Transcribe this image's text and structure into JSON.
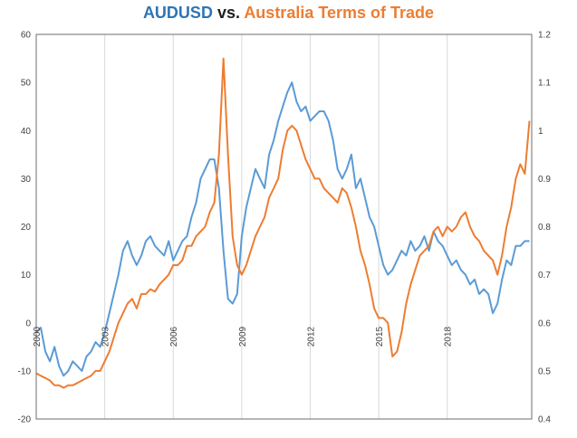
{
  "chart_data": {
    "type": "line",
    "title": {
      "part1": "AUDUSD",
      "part2": " vs. ",
      "part3": "Australia Terms of Trade"
    },
    "xlabel": "",
    "x_ticks": [
      "2000",
      "2003",
      "2006",
      "2009",
      "2012",
      "2015",
      "2018"
    ],
    "x_range": [
      2000.0,
      2021.7
    ],
    "y_left": {
      "range": [
        -20,
        60
      ],
      "ticks": [
        -20,
        -10,
        0,
        10,
        20,
        30,
        40,
        50,
        60
      ]
    },
    "y_right": {
      "range": [
        0.4,
        1.2
      ],
      "ticks": [
        "0.4",
        "0.5",
        "0.6",
        "0.7",
        "0.8",
        "0.9",
        "1",
        "1.1",
        "1.2"
      ]
    },
    "grid": "vertical",
    "legend": "none",
    "colors": {
      "audusd": "#5b9bd5",
      "tot": "#ed7d31",
      "title_part1": "#2e75b6",
      "title_part2": "#1f1f1f",
      "title_part3": "#ed7d31"
    },
    "series": [
      {
        "name": "AUDUSD",
        "axis": "left",
        "x": [
          2000.0,
          2000.2,
          2000.4,
          2000.6,
          2000.8,
          2001.0,
          2001.2,
          2001.4,
          2001.6,
          2001.8,
          2002.0,
          2002.2,
          2002.4,
          2002.6,
          2002.8,
          2003.0,
          2003.2,
          2003.4,
          2003.6,
          2003.8,
          2004.0,
          2004.2,
          2004.4,
          2004.6,
          2004.8,
          2005.0,
          2005.2,
          2005.4,
          2005.6,
          2005.8,
          2006.0,
          2006.2,
          2006.4,
          2006.6,
          2006.8,
          2007.0,
          2007.2,
          2007.4,
          2007.6,
          2007.8,
          2008.0,
          2008.2,
          2008.4,
          2008.6,
          2008.8,
          2009.0,
          2009.2,
          2009.4,
          2009.6,
          2009.8,
          2010.0,
          2010.2,
          2010.4,
          2010.6,
          2010.8,
          2011.0,
          2011.2,
          2011.4,
          2011.6,
          2011.8,
          2012.0,
          2012.2,
          2012.4,
          2012.6,
          2012.8,
          2013.0,
          2013.2,
          2013.4,
          2013.6,
          2013.8,
          2014.0,
          2014.2,
          2014.4,
          2014.6,
          2014.8,
          2015.0,
          2015.2,
          2015.4,
          2015.6,
          2015.8,
          2016.0,
          2016.2,
          2016.4,
          2016.6,
          2016.8,
          2017.0,
          2017.2,
          2017.4,
          2017.6,
          2017.8,
          2018.0,
          2018.2,
          2018.4,
          2018.6,
          2018.8,
          2019.0,
          2019.2,
          2019.4,
          2019.6,
          2019.8,
          2020.0,
          2020.2,
          2020.4,
          2020.6,
          2020.8,
          2021.0,
          2021.2,
          2021.4,
          2021.6
        ],
        "values": [
          -2,
          -1,
          -6,
          -8,
          -5,
          -9,
          -11,
          -10,
          -8,
          -9,
          -10,
          -7,
          -6,
          -4,
          -5,
          -2,
          2,
          6,
          10,
          15,
          17,
          14,
          12,
          14,
          17,
          18,
          16,
          15,
          14,
          17,
          13,
          15,
          17,
          18,
          22,
          25,
          30,
          32,
          34,
          34,
          28,
          15,
          5,
          4,
          6,
          18,
          24,
          28,
          32,
          30,
          28,
          35,
          38,
          42,
          45,
          48,
          50,
          46,
          44,
          45,
          42,
          43,
          44,
          44,
          42,
          38,
          32,
          30,
          32,
          35,
          28,
          30,
          26,
          22,
          20,
          16,
          12,
          10,
          11,
          13,
          15,
          14,
          17,
          15,
          16,
          18,
          15,
          19,
          17,
          16,
          14,
          12,
          13,
          11,
          10,
          8,
          9,
          6,
          7,
          6,
          2,
          4,
          9,
          13,
          12,
          16,
          16,
          17,
          17
        ]
      },
      {
        "name": "Australia Terms of Trade",
        "axis": "right",
        "x": [
          2000.0,
          2000.2,
          2000.4,
          2000.6,
          2000.8,
          2001.0,
          2001.2,
          2001.4,
          2001.6,
          2001.8,
          2002.0,
          2002.2,
          2002.4,
          2002.6,
          2002.8,
          2003.0,
          2003.2,
          2003.4,
          2003.6,
          2003.8,
          2004.0,
          2004.2,
          2004.4,
          2004.6,
          2004.8,
          2005.0,
          2005.2,
          2005.4,
          2005.6,
          2005.8,
          2006.0,
          2006.2,
          2006.4,
          2006.6,
          2006.8,
          2007.0,
          2007.2,
          2007.4,
          2007.6,
          2007.8,
          2008.0,
          2008.2,
          2008.4,
          2008.6,
          2008.8,
          2009.0,
          2009.2,
          2009.4,
          2009.6,
          2009.8,
          2010.0,
          2010.2,
          2010.4,
          2010.6,
          2010.8,
          2011.0,
          2011.2,
          2011.4,
          2011.6,
          2011.8,
          2012.0,
          2012.2,
          2012.4,
          2012.6,
          2012.8,
          2013.0,
          2013.2,
          2013.4,
          2013.6,
          2013.8,
          2014.0,
          2014.2,
          2014.4,
          2014.6,
          2014.8,
          2015.0,
          2015.2,
          2015.4,
          2015.6,
          2015.8,
          2016.0,
          2016.2,
          2016.4,
          2016.6,
          2016.8,
          2017.0,
          2017.2,
          2017.4,
          2017.6,
          2017.8,
          2018.0,
          2018.2,
          2018.4,
          2018.6,
          2018.8,
          2019.0,
          2019.2,
          2019.4,
          2019.6,
          2019.8,
          2020.0,
          2020.2,
          2020.4,
          2020.6,
          2020.8,
          2021.0,
          2021.2,
          2021.4,
          2021.6
        ],
        "values": [
          0.495,
          0.49,
          0.485,
          0.48,
          0.47,
          0.47,
          0.465,
          0.47,
          0.47,
          0.475,
          0.48,
          0.485,
          0.49,
          0.5,
          0.5,
          0.52,
          0.54,
          0.57,
          0.6,
          0.62,
          0.64,
          0.65,
          0.63,
          0.66,
          0.66,
          0.67,
          0.665,
          0.68,
          0.69,
          0.7,
          0.72,
          0.72,
          0.73,
          0.76,
          0.76,
          0.78,
          0.79,
          0.8,
          0.83,
          0.85,
          0.95,
          1.15,
          0.95,
          0.78,
          0.72,
          0.7,
          0.72,
          0.75,
          0.78,
          0.8,
          0.82,
          0.86,
          0.88,
          0.9,
          0.96,
          1.0,
          1.01,
          1.0,
          0.97,
          0.94,
          0.92,
          0.9,
          0.9,
          0.88,
          0.87,
          0.86,
          0.85,
          0.88,
          0.87,
          0.84,
          0.8,
          0.75,
          0.72,
          0.68,
          0.63,
          0.61,
          0.61,
          0.6,
          0.53,
          0.54,
          0.58,
          0.64,
          0.68,
          0.71,
          0.74,
          0.75,
          0.76,
          0.79,
          0.8,
          0.78,
          0.8,
          0.79,
          0.8,
          0.82,
          0.83,
          0.8,
          0.78,
          0.77,
          0.75,
          0.74,
          0.73,
          0.7,
          0.74,
          0.8,
          0.84,
          0.9,
          0.93,
          0.91,
          1.02
        ]
      }
    ]
  }
}
